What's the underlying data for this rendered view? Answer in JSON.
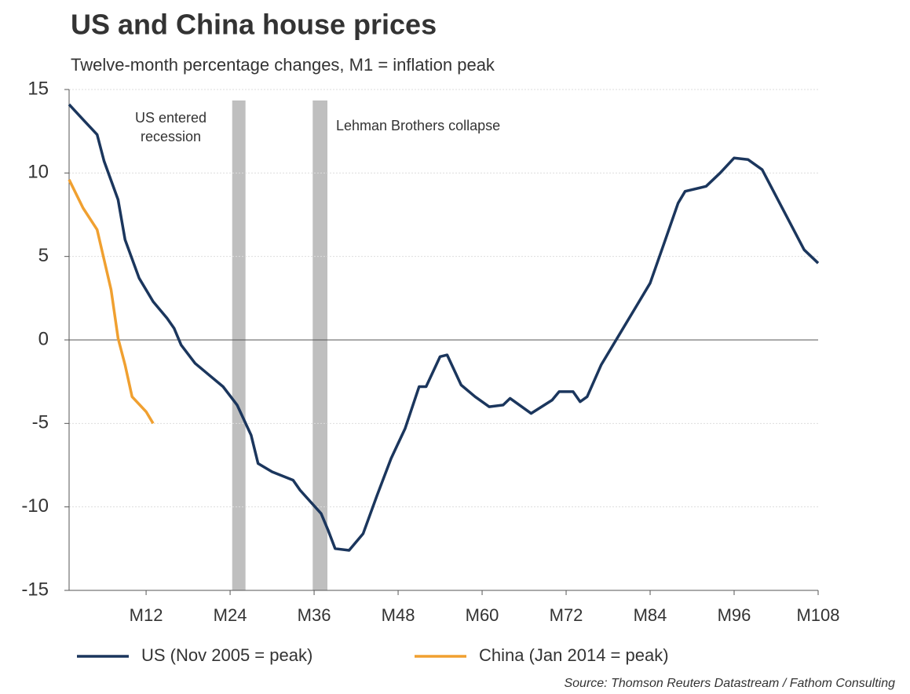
{
  "chart_data": {
    "type": "line",
    "title": "US and China house prices",
    "subtitle": "Twelve-month percentage changes, M1 = inflation peak",
    "source": "Source: Thomson Reuters Datastream / Fathom Consulting",
    "xlim": [
      1,
      108
    ],
    "xticks": [
      {
        "value": 12,
        "label": "M12"
      },
      {
        "value": 24,
        "label": "M24"
      },
      {
        "value": 36,
        "label": "M36"
      },
      {
        "value": 48,
        "label": "M48"
      },
      {
        "value": 60,
        "label": "M60"
      },
      {
        "value": 72,
        "label": "M72"
      },
      {
        "value": 84,
        "label": "M84"
      },
      {
        "value": 96,
        "label": "M96"
      },
      {
        "value": 108,
        "label": "M108"
      }
    ],
    "ylim": [
      -15,
      15
    ],
    "yticks": [
      -15,
      -10,
      -5,
      0,
      5,
      10,
      15
    ],
    "grid": true,
    "legend": "bottom",
    "annotations": [
      {
        "label": "US entered recession",
        "x": [
          24.3,
          26.2
        ]
      },
      {
        "label": "Lehman Brothers collapse",
        "x": [
          35.8,
          37.9
        ]
      }
    ],
    "series": [
      {
        "name": "US (Nov 2005 = peak)",
        "color": "#1b365d",
        "x": [
          1,
          3,
          5,
          6,
          8,
          9,
          11,
          13,
          15,
          16,
          17,
          19,
          21,
          23,
          25,
          27,
          28,
          30,
          33,
          34,
          37,
          38,
          39,
          41,
          43,
          45,
          47,
          49,
          51,
          52,
          54,
          55,
          57,
          59,
          61,
          63,
          64,
          66,
          67,
          70,
          71,
          73,
          74,
          75,
          77,
          80,
          82,
          84,
          86,
          88,
          89,
          92,
          94,
          96,
          98,
          100,
          102,
          104,
          106,
          108
        ],
        "values": [
          14.1,
          13.2,
          12.3,
          10.7,
          8.4,
          6.0,
          3.7,
          2.3,
          1.3,
          0.7,
          -0.3,
          -1.4,
          -2.1,
          -2.8,
          -3.9,
          -5.7,
          -7.4,
          -7.9,
          -8.4,
          -9.0,
          -10.4,
          -11.4,
          -12.5,
          -12.6,
          -11.6,
          -9.3,
          -7.1,
          -5.3,
          -2.8,
          -2.8,
          -1.0,
          -0.9,
          -2.7,
          -3.4,
          -4.0,
          -3.9,
          -3.5,
          -4.1,
          -4.4,
          -3.6,
          -3.1,
          -3.1,
          -3.7,
          -3.4,
          -1.5,
          0.6,
          2.0,
          3.4,
          5.8,
          8.2,
          8.9,
          9.2,
          10.0,
          10.9,
          10.8,
          10.2,
          8.6,
          7.0,
          5.4,
          4.6
        ]
      },
      {
        "name": "China (Jan 2014 = peak)",
        "color": "#f0a030",
        "x": [
          1,
          3,
          5,
          6,
          7,
          8,
          9,
          10,
          12,
          13
        ],
        "values": [
          9.6,
          7.9,
          6.6,
          4.8,
          3.0,
          0.1,
          -1.5,
          -3.4,
          -4.3,
          -5.0
        ]
      }
    ]
  }
}
